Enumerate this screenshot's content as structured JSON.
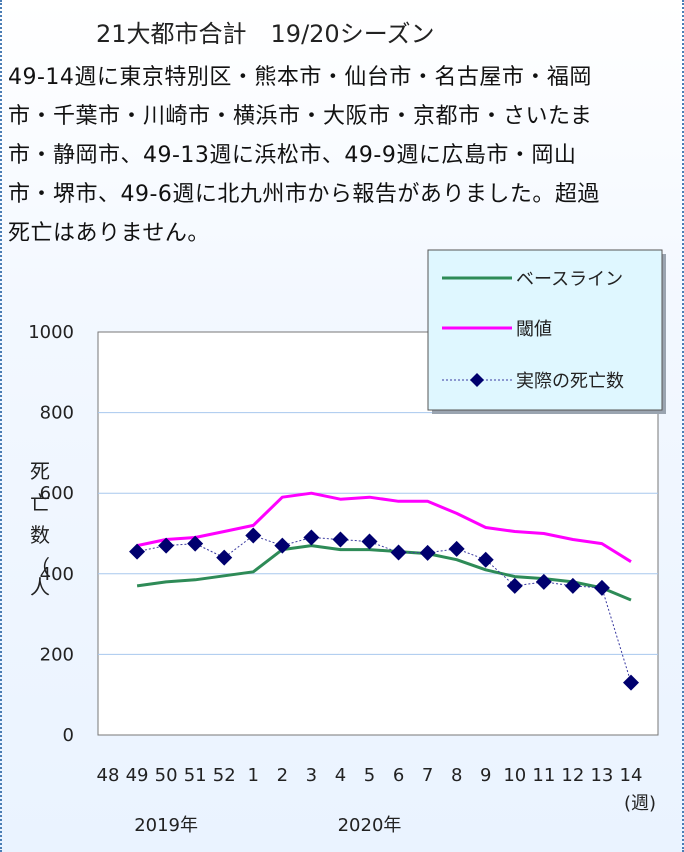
{
  "title": "21大都市合計　19/20シーズン",
  "description_lines": [
    "49-14週に東京特別区・熊本市・仙台市・名古屋市・福岡",
    "市・千葉市・川崎市・横浜市・大阪市・京都市・さいたま",
    "市・静岡市、49-13週に浜松市、49-9週に広島市・岡山",
    "市・堺市、49-6週に北九州市から報告がありました。超過",
    "死亡はありません。"
  ],
  "colors": {
    "baseline": "#2e8b57",
    "threshold": "#ff00ff",
    "actual_line": "#3a3aa0",
    "actual_marker": "#00006e",
    "plot_bg": "#ffffff",
    "gridline": "#a8c8ee",
    "legend_bg": "#dff7ff"
  },
  "chart_data": {
    "type": "line",
    "title": "21大都市合計　19/20シーズン",
    "ylabel": "死亡数（人）",
    "xlabel": "(週)",
    "ylim": [
      0,
      1000
    ],
    "y_ticks": [
      "0",
      "200",
      "400",
      "600",
      "800",
      "1000"
    ],
    "categories": [
      "48",
      "49",
      "50",
      "51",
      "52",
      "1",
      "2",
      "3",
      "4",
      "5",
      "6",
      "7",
      "8",
      "9",
      "10",
      "11",
      "12",
      "13",
      "14"
    ],
    "x_tick_labels": [
      "48",
      "49",
      "50",
      "51",
      "52",
      "1",
      "2",
      "3",
      "4",
      "5",
      "6",
      "7",
      "8",
      "9",
      "10",
      "11",
      "12",
      "13",
      "14"
    ],
    "year_labels": [
      {
        "text": "2019年",
        "category": "50"
      },
      {
        "text": "2020年",
        "category": "5"
      }
    ],
    "legend_position": "top-right",
    "grid": true,
    "series": [
      {
        "name": "ベースライン",
        "key": "baseline",
        "values": [
          null,
          370,
          380,
          385,
          395,
          405,
          460,
          470,
          460,
          460,
          455,
          450,
          435,
          410,
          393,
          388,
          380,
          365,
          335
        ]
      },
      {
        "name": "閾値",
        "key": "threshold",
        "values": [
          null,
          470,
          485,
          490,
          505,
          520,
          590,
          600,
          585,
          590,
          580,
          580,
          550,
          515,
          505,
          500,
          485,
          475,
          430
        ]
      },
      {
        "name": "実際の死亡数",
        "key": "actual",
        "values": [
          null,
          455,
          470,
          475,
          440,
          495,
          470,
          490,
          485,
          480,
          453,
          452,
          462,
          435,
          370,
          380,
          370,
          365,
          130
        ]
      }
    ]
  }
}
